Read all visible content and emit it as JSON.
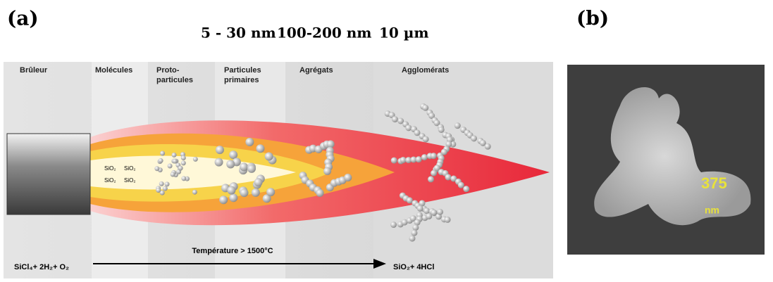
{
  "panel_a": {
    "label": "(a)",
    "sizes": [
      "5 - 30 nm",
      "100-200 nm",
      "10 µm"
    ],
    "stages": [
      [
        "Brûleur"
      ],
      [
        "Molécules"
      ],
      [
        "Proto-",
        "particules"
      ],
      [
        "Particules",
        "primaires"
      ],
      [
        "Agrégats"
      ],
      [
        "Agglomérats"
      ]
    ],
    "molecules": [
      "SiO₂",
      "SiO₂",
      "SiO₂",
      "SiO₂"
    ],
    "reaction": {
      "reactants": "SiCl₄+ 2H₂+ O₂",
      "condition": "Température > 1500°C",
      "products": "SiO₂+ 4HCl"
    }
  },
  "panel_b": {
    "label": "(b)",
    "scale_value": "375",
    "scale_unit": "nm"
  }
}
